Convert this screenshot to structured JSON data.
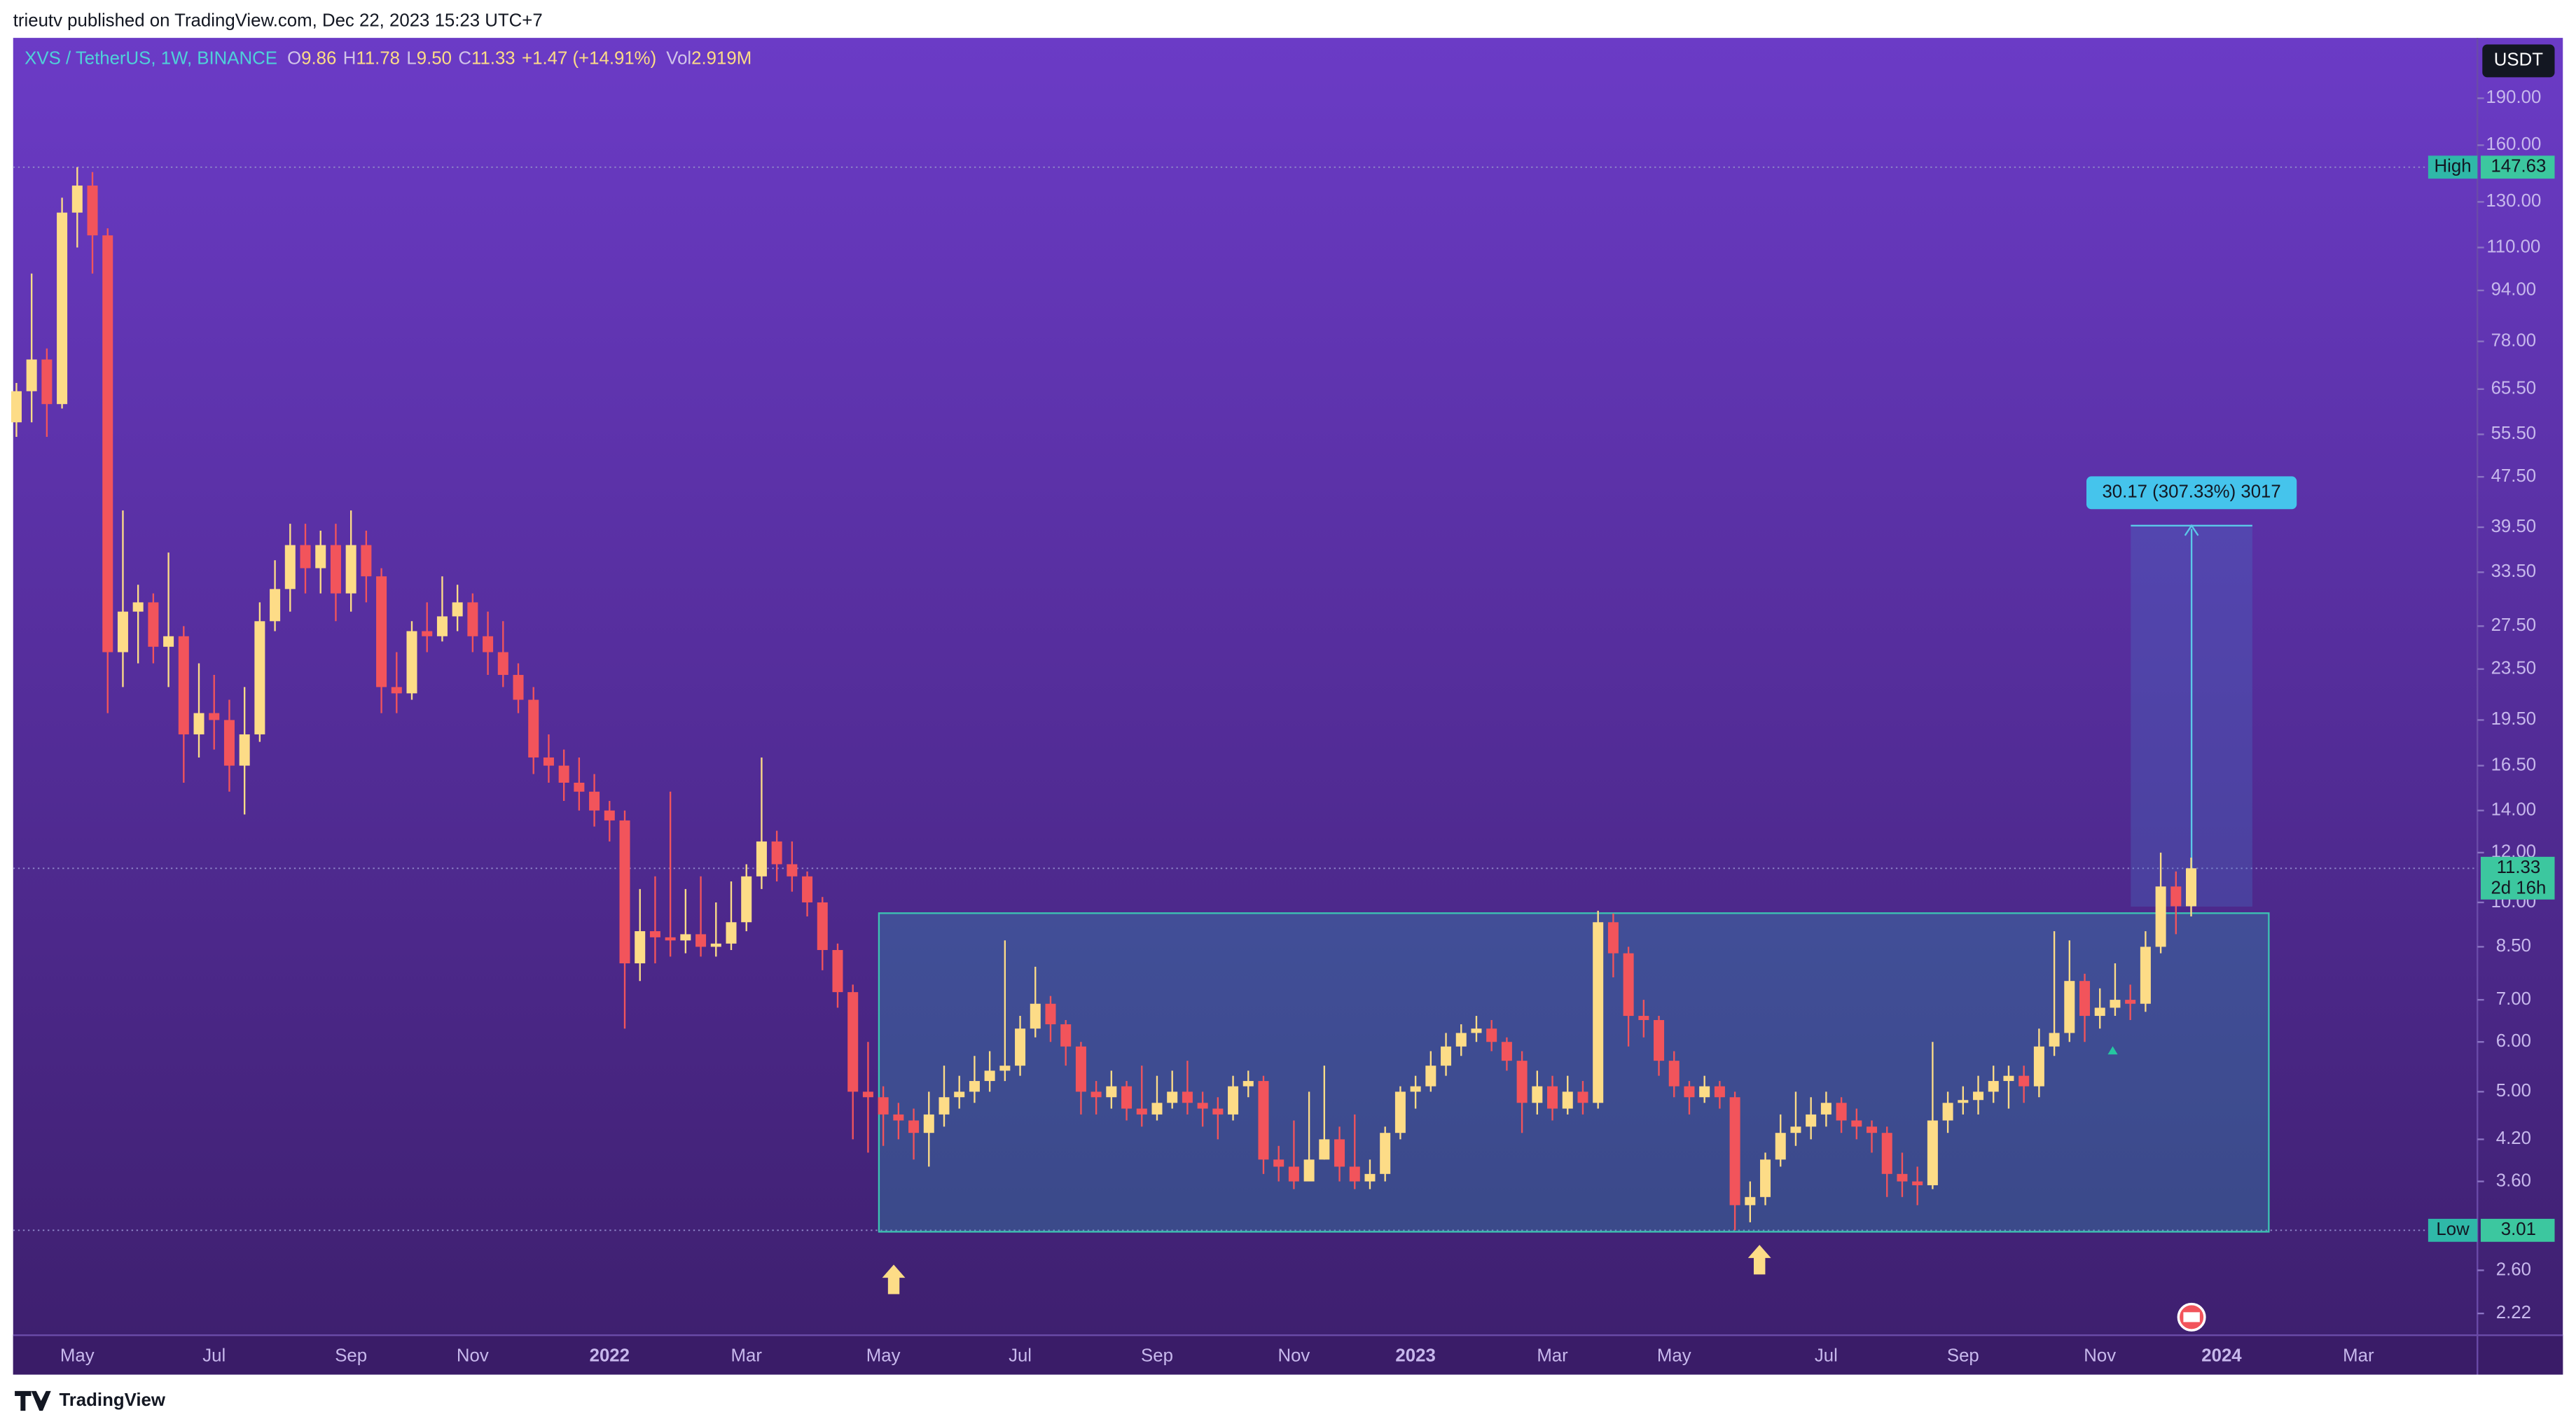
{
  "header": "trieutv published on TradingView.com, Dec 22, 2023 15:23 UTC+7",
  "footer": "TradingView",
  "currency_button": "USDT",
  "legend": {
    "symbol": "XVS / TetherUS, 1W, BINANCE",
    "o_key": "O",
    "o": "9.86",
    "h_key": "H",
    "h": "11.78",
    "l_key": "L",
    "l": "9.50",
    "c_key": "C",
    "c": "11.33",
    "change": "+1.47 (+14.91%)",
    "vol_key": "Vol",
    "vol": "2.919M"
  },
  "measure": "30.17 (307.33%) 3017",
  "high_marker": {
    "label": "High",
    "value": 147.63
  },
  "low_marker": {
    "label": "Low",
    "value": 3.01
  },
  "last_price": {
    "value": 11.33,
    "countdown": "2d 16h"
  },
  "chart_data": {
    "type": "candlestick",
    "log_scale": true,
    "up_color": "#fddc87",
    "down_color": "#f2545b",
    "ylim": [
      2.05,
      237
    ],
    "yticks": [
      {
        "value": 190,
        "label": "190.00"
      },
      {
        "value": 160,
        "label": "160.00"
      },
      {
        "value": 130,
        "label": "130.00"
      },
      {
        "value": 110,
        "label": "110.00"
      },
      {
        "value": 94,
        "label": "94.00"
      },
      {
        "value": 78,
        "label": "78.00"
      },
      {
        "value": 65.5,
        "label": "65.50"
      },
      {
        "value": 55.5,
        "label": "55.50"
      },
      {
        "value": 47.5,
        "label": "47.50"
      },
      {
        "value": 39.5,
        "label": "39.50"
      },
      {
        "value": 33.5,
        "label": "33.50"
      },
      {
        "value": 27.5,
        "label": "27.50"
      },
      {
        "value": 23.5,
        "label": "23.50"
      },
      {
        "value": 19.5,
        "label": "19.50"
      },
      {
        "value": 16.5,
        "label": "16.50"
      },
      {
        "value": 14,
        "label": "14.00"
      },
      {
        "value": 12,
        "label": "12.00"
      },
      {
        "value": 10,
        "label": "10.00"
      },
      {
        "value": 8.5,
        "label": "8.50"
      },
      {
        "value": 7,
        "label": "7.00"
      },
      {
        "value": 6,
        "label": "6.00"
      },
      {
        "value": 5,
        "label": "5.00"
      },
      {
        "value": 4.2,
        "label": "4.20"
      },
      {
        "value": 3.6,
        "label": "3.60"
      },
      {
        "value": 2.6,
        "label": "2.60"
      },
      {
        "value": 2.22,
        "label": "2.22"
      }
    ],
    "categories": [
      null,
      null,
      null,
      null,
      "May",
      null,
      null,
      null,
      null,
      null,
      null,
      null,
      null,
      "Jul",
      null,
      null,
      null,
      null,
      null,
      null,
      null,
      null,
      "Sep",
      null,
      null,
      null,
      null,
      null,
      null,
      null,
      "Nov",
      null,
      null,
      null,
      null,
      null,
      null,
      null,
      null,
      "2022",
      null,
      null,
      null,
      null,
      null,
      null,
      null,
      null,
      "Mar",
      null,
      null,
      null,
      null,
      null,
      null,
      null,
      null,
      "May",
      null,
      null,
      null,
      null,
      null,
      null,
      null,
      null,
      "Jul",
      null,
      null,
      null,
      null,
      null,
      null,
      null,
      null,
      "Sep",
      null,
      null,
      null,
      null,
      null,
      null,
      null,
      null,
      "Nov",
      null,
      null,
      null,
      null,
      null,
      null,
      null,
      "2023",
      null,
      null,
      null,
      null,
      null,
      null,
      null,
      null,
      "Mar",
      null,
      null,
      null,
      null,
      null,
      null,
      null,
      "May",
      null,
      null,
      null,
      null,
      null,
      null,
      null,
      null,
      null,
      "Jul",
      null,
      null,
      null,
      null,
      null,
      null,
      null,
      null,
      "Sep",
      null,
      null,
      null,
      null,
      null,
      null,
      null,
      null,
      "Nov",
      null,
      null,
      null,
      null,
      null,
      null,
      null,
      "2024",
      null,
      null,
      null,
      null,
      null,
      null,
      null,
      null,
      "Mar",
      null,
      null,
      null,
      null,
      null,
      null,
      null
    ],
    "open": [
      58,
      65,
      73,
      62,
      125,
      138,
      115,
      25,
      29,
      30,
      25.5,
      26.5,
      18.5,
      20,
      19.5,
      16.5,
      18.5,
      28,
      31.5,
      37,
      34,
      37,
      31,
      37,
      33,
      22,
      21.5,
      27,
      26.5,
      28.5,
      30,
      26.5,
      25,
      23,
      21,
      17,
      16.5,
      15.5,
      15,
      14,
      13.5,
      8,
      9,
      8.8,
      8.7,
      8.9,
      8.5,
      8.6,
      9.3,
      11,
      12.5,
      11.5,
      11,
      10,
      8.4,
      7.2,
      5.0,
      4.9,
      4.6,
      4.5,
      4.3,
      4.6,
      4.9,
      5.0,
      5.2,
      5.4,
      5.5,
      6.3,
      6.9,
      6.4,
      5.9,
      5.0,
      4.9,
      5.1,
      4.7,
      4.6,
      4.8,
      5.0,
      4.8,
      4.7,
      4.6,
      5.1,
      5.2,
      3.9,
      3.8,
      3.6,
      3.9,
      4.2,
      3.8,
      3.6,
      3.7,
      4.3,
      5.0,
      5.1,
      5.5,
      5.9,
      6.2,
      6.3,
      6.0,
      5.6,
      4.8,
      5.1,
      4.7,
      5.0,
      4.8,
      9.3,
      8.3,
      6.6,
      6.5,
      5.6,
      5.1,
      4.9,
      5.1,
      4.9,
      3.3,
      3.4,
      3.9,
      4.3,
      4.4,
      4.6,
      4.8,
      4.5,
      4.4,
      4.3,
      3.7,
      3.6,
      3.55,
      4.5,
      4.8,
      4.85,
      5.0,
      5.2,
      5.3,
      5.1,
      5.9,
      6.2,
      7.5,
      6.6,
      6.8,
      7.0,
      6.9,
      8.5,
      10.6,
      9.86,
      null,
      null,
      null,
      null,
      null,
      null,
      null,
      null,
      null,
      null,
      null,
      null,
      null,
      null,
      null,
      null,
      null,
      null
    ],
    "high": [
      67,
      100,
      76,
      132,
      147.63,
      145,
      118,
      42,
      32,
      31,
      36,
      27.5,
      24,
      23,
      21,
      22,
      30,
      35,
      40,
      40,
      39,
      40,
      42,
      39,
      34,
      25,
      28,
      30,
      33,
      32,
      31,
      29,
      28,
      24,
      22,
      18.5,
      17.5,
      17,
      16,
      14.5,
      14,
      10.5,
      11,
      15,
      10.5,
      11,
      10,
      10.8,
      11.5,
      17,
      13,
      12.5,
      11.2,
      10.2,
      8.6,
      7.4,
      6.0,
      5.1,
      4.8,
      4.7,
      5.0,
      5.5,
      5.3,
      5.7,
      5.8,
      8.7,
      6.6,
      7.9,
      7.1,
      6.5,
      6.0,
      5.2,
      5.4,
      5.2,
      5.5,
      5.3,
      5.4,
      5.6,
      5.0,
      4.9,
      5.3,
      5.4,
      5.3,
      4.1,
      4.5,
      5.0,
      5.5,
      4.4,
      4.6,
      3.9,
      4.4,
      5.1,
      5.3,
      5.8,
      6.2,
      6.4,
      6.6,
      6.5,
      6.1,
      5.8,
      5.4,
      5.3,
      5.3,
      5.2,
      9.7,
      9.6,
      8.5,
      7.0,
      6.6,
      5.8,
      5.2,
      5.3,
      5.2,
      5.0,
      3.6,
      4.0,
      4.6,
      5.0,
      4.9,
      5.0,
      4.9,
      4.7,
      4.5,
      4.4,
      4.0,
      3.8,
      6.0,
      5.0,
      5.1,
      5.3,
      5.5,
      5.5,
      5.5,
      6.3,
      9.0,
      8.7,
      7.7,
      7.3,
      8.0,
      7.4,
      9.0,
      12.0,
      11.2,
      11.78,
      null,
      null,
      null,
      null,
      null,
      null,
      null,
      null,
      null,
      null,
      null,
      null,
      null,
      null,
      null,
      null,
      null,
      null
    ],
    "low": [
      55,
      58,
      55,
      61,
      110,
      100,
      20,
      22,
      24,
      24,
      22,
      15.5,
      17,
      17.5,
      15,
      13.8,
      18,
      27,
      29,
      31,
      31,
      28,
      29,
      30,
      20,
      20,
      21,
      25,
      26,
      27,
      25,
      23,
      22,
      20,
      16,
      15.5,
      14.5,
      14,
      13.2,
      12.5,
      6.3,
      7.5,
      8,
      8.2,
      8.3,
      8.2,
      8.2,
      8.4,
      9,
      10.5,
      10.8,
      10.4,
      9.5,
      7.8,
      6.8,
      4.2,
      4.0,
      4.1,
      4.2,
      3.9,
      3.8,
      4.4,
      4.7,
      4.8,
      5.0,
      5.2,
      5.3,
      6.1,
      6.0,
      5.5,
      4.6,
      4.6,
      4.7,
      4.5,
      4.4,
      4.5,
      4.7,
      4.6,
      4.4,
      4.2,
      4.5,
      4.9,
      3.7,
      3.6,
      3.5,
      3.6,
      3.9,
      3.6,
      3.5,
      3.5,
      3.6,
      4.2,
      4.7,
      5.0,
      5.3,
      5.7,
      6.0,
      5.8,
      5.4,
      4.3,
      4.6,
      4.5,
      4.6,
      4.6,
      4.7,
      7.6,
      5.9,
      6.1,
      5.3,
      4.9,
      4.6,
      4.8,
      4.7,
      3.01,
      3.1,
      3.3,
      3.8,
      4.1,
      4.2,
      4.4,
      4.3,
      4.2,
      4.0,
      3.4,
      3.4,
      3.3,
      3.5,
      4.3,
      4.6,
      4.6,
      4.8,
      4.7,
      4.8,
      4.9,
      5.7,
      6.0,
      6.0,
      6.3,
      6.6,
      6.5,
      6.7,
      8.3,
      8.9,
      9.5,
      null,
      null,
      null,
      null,
      null,
      null,
      null,
      null,
      null,
      null,
      null,
      null,
      null,
      null,
      null,
      null,
      null,
      null
    ],
    "close": [
      65,
      73,
      62,
      125,
      138,
      115,
      25,
      29,
      30,
      25.5,
      26.5,
      18.5,
      20,
      19.5,
      16.5,
      18.5,
      28,
      31.5,
      37,
      34,
      37,
      31,
      37,
      33,
      22,
      21.5,
      27,
      26.5,
      28.5,
      30,
      26.5,
      25,
      23,
      21,
      17,
      16.5,
      15.5,
      15,
      14,
      13.5,
      8,
      9,
      8.8,
      8.7,
      8.9,
      8.5,
      8.6,
      9.3,
      11,
      12.5,
      11.5,
      11,
      10,
      8.4,
      7.2,
      5.0,
      4.9,
      4.6,
      4.5,
      4.3,
      4.6,
      4.9,
      5.0,
      5.2,
      5.4,
      5.5,
      6.3,
      6.9,
      6.4,
      5.9,
      5.0,
      4.9,
      5.1,
      4.7,
      4.6,
      4.8,
      5.0,
      4.8,
      4.7,
      4.6,
      5.1,
      5.2,
      3.9,
      3.8,
      3.6,
      3.9,
      4.2,
      3.8,
      3.6,
      3.7,
      4.3,
      5.0,
      5.1,
      5.5,
      5.9,
      6.2,
      6.3,
      6.0,
      5.6,
      4.8,
      5.1,
      4.7,
      5.0,
      4.8,
      9.3,
      8.3,
      6.6,
      6.5,
      5.6,
      5.1,
      4.9,
      5.1,
      4.9,
      3.3,
      3.4,
      3.9,
      4.3,
      4.4,
      4.6,
      4.8,
      4.5,
      4.4,
      4.3,
      3.7,
      3.6,
      3.55,
      4.5,
      4.8,
      4.85,
      5.0,
      5.2,
      5.3,
      5.1,
      5.9,
      6.2,
      7.5,
      6.6,
      6.8,
      7.0,
      6.9,
      8.5,
      10.6,
      9.86,
      11.33,
      null,
      null,
      null,
      null,
      null,
      null,
      null,
      null,
      null,
      null,
      null,
      null,
      null,
      null,
      null,
      null,
      null,
      null
    ]
  }
}
